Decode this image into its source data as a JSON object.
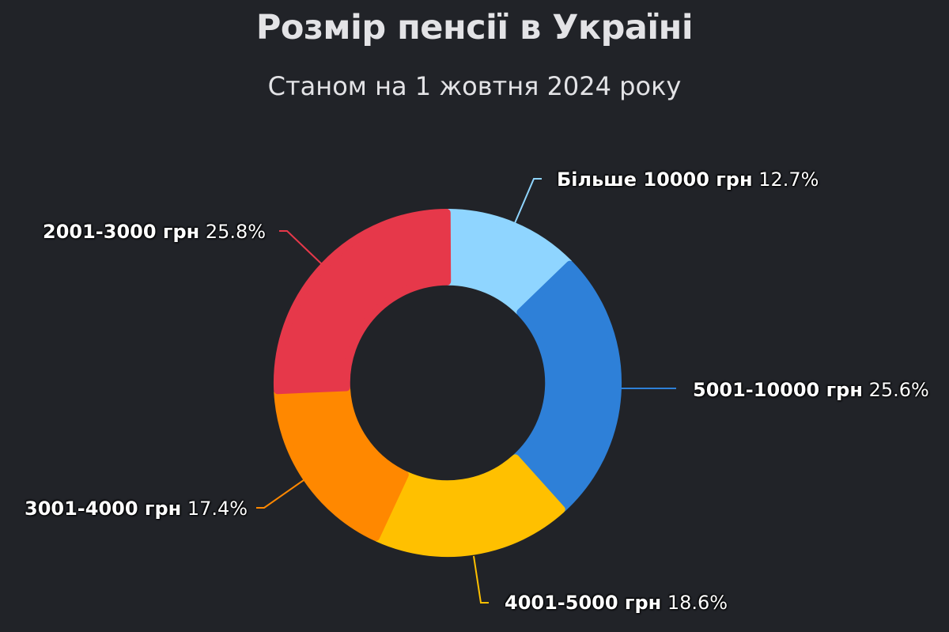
{
  "header": {
    "title": "Розмір пенсії в Україні",
    "subtitle": "Станом на 1 жовтня 2024 року"
  },
  "colors": {
    "background": "#212328",
    "text": "#e3e3e6",
    "label": "#ffffff"
  },
  "chart_data": {
    "type": "pie",
    "variant": "donut",
    "title": "Розмір пенсії в Україні",
    "subtitle": "Станом на 1 жовтня 2024 року",
    "unit": "%",
    "start_angle_deg": 0,
    "direction": "clockwise",
    "slices": [
      {
        "label": "Більше 10000 грн",
        "value": 12.7,
        "display": "12.7%",
        "color": "#8fd5ff"
      },
      {
        "label": "5001-10000 грн",
        "value": 25.6,
        "display": "25.6%",
        "color": "#2e80d8"
      },
      {
        "label": "4001-5000 грн",
        "value": 18.6,
        "display": "18.6%",
        "color": "#ffc000"
      },
      {
        "label": "3001-4000 грн",
        "value": 17.4,
        "display": "17.4%",
        "color": "#ff8800"
      },
      {
        "label": "2001-3000 грн",
        "value": 25.8,
        "display": "25.8%",
        "color": "#e6384a"
      }
    ],
    "legend": "none (data labels with leader lines)"
  }
}
